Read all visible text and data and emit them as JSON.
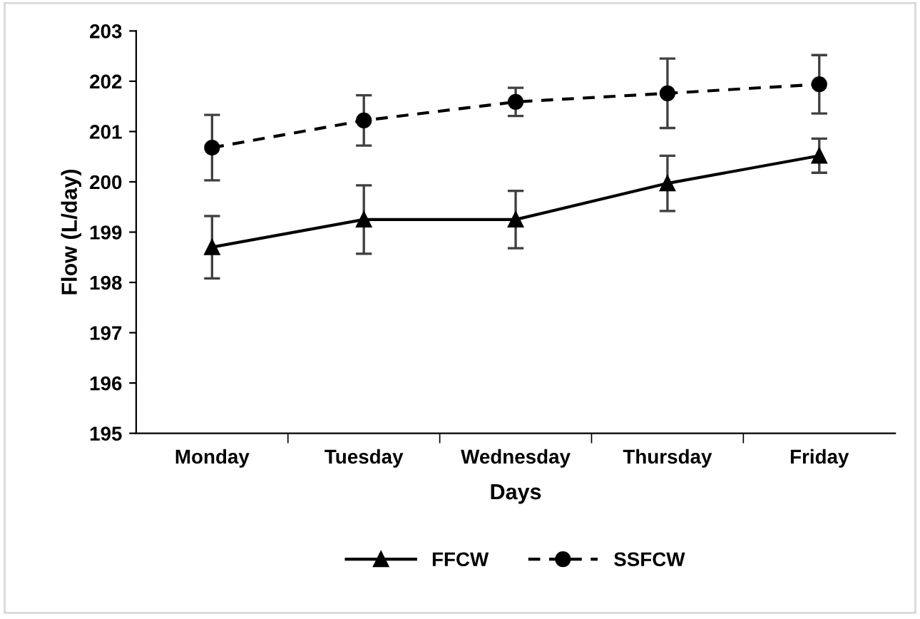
{
  "chart_data": {
    "type": "line",
    "xlabel": "Days",
    "ylabel": "Flow (L/day)",
    "categories": [
      "Monday",
      "Tuesday",
      "Wednesday",
      "Thursday",
      "Friday"
    ],
    "ylim": [
      195,
      203
    ],
    "yticks": [
      195,
      196,
      197,
      198,
      199,
      200,
      201,
      202,
      203
    ],
    "grid": false,
    "legend": "bottom",
    "series": [
      {
        "name": "FFCW",
        "color": "#000000",
        "marker": "triangle",
        "line_style": "solid",
        "values": [
          198.7,
          199.25,
          199.25,
          199.97,
          200.52
        ],
        "errors": [
          0.62,
          0.68,
          0.57,
          0.55,
          0.34
        ]
      },
      {
        "name": "SSFCW",
        "color": "#000000",
        "marker": "circle",
        "line_style": "dashed",
        "values": [
          200.68,
          201.22,
          201.59,
          201.76,
          201.94
        ],
        "errors": [
          0.65,
          0.5,
          0.28,
          0.69,
          0.58
        ]
      }
    ]
  }
}
